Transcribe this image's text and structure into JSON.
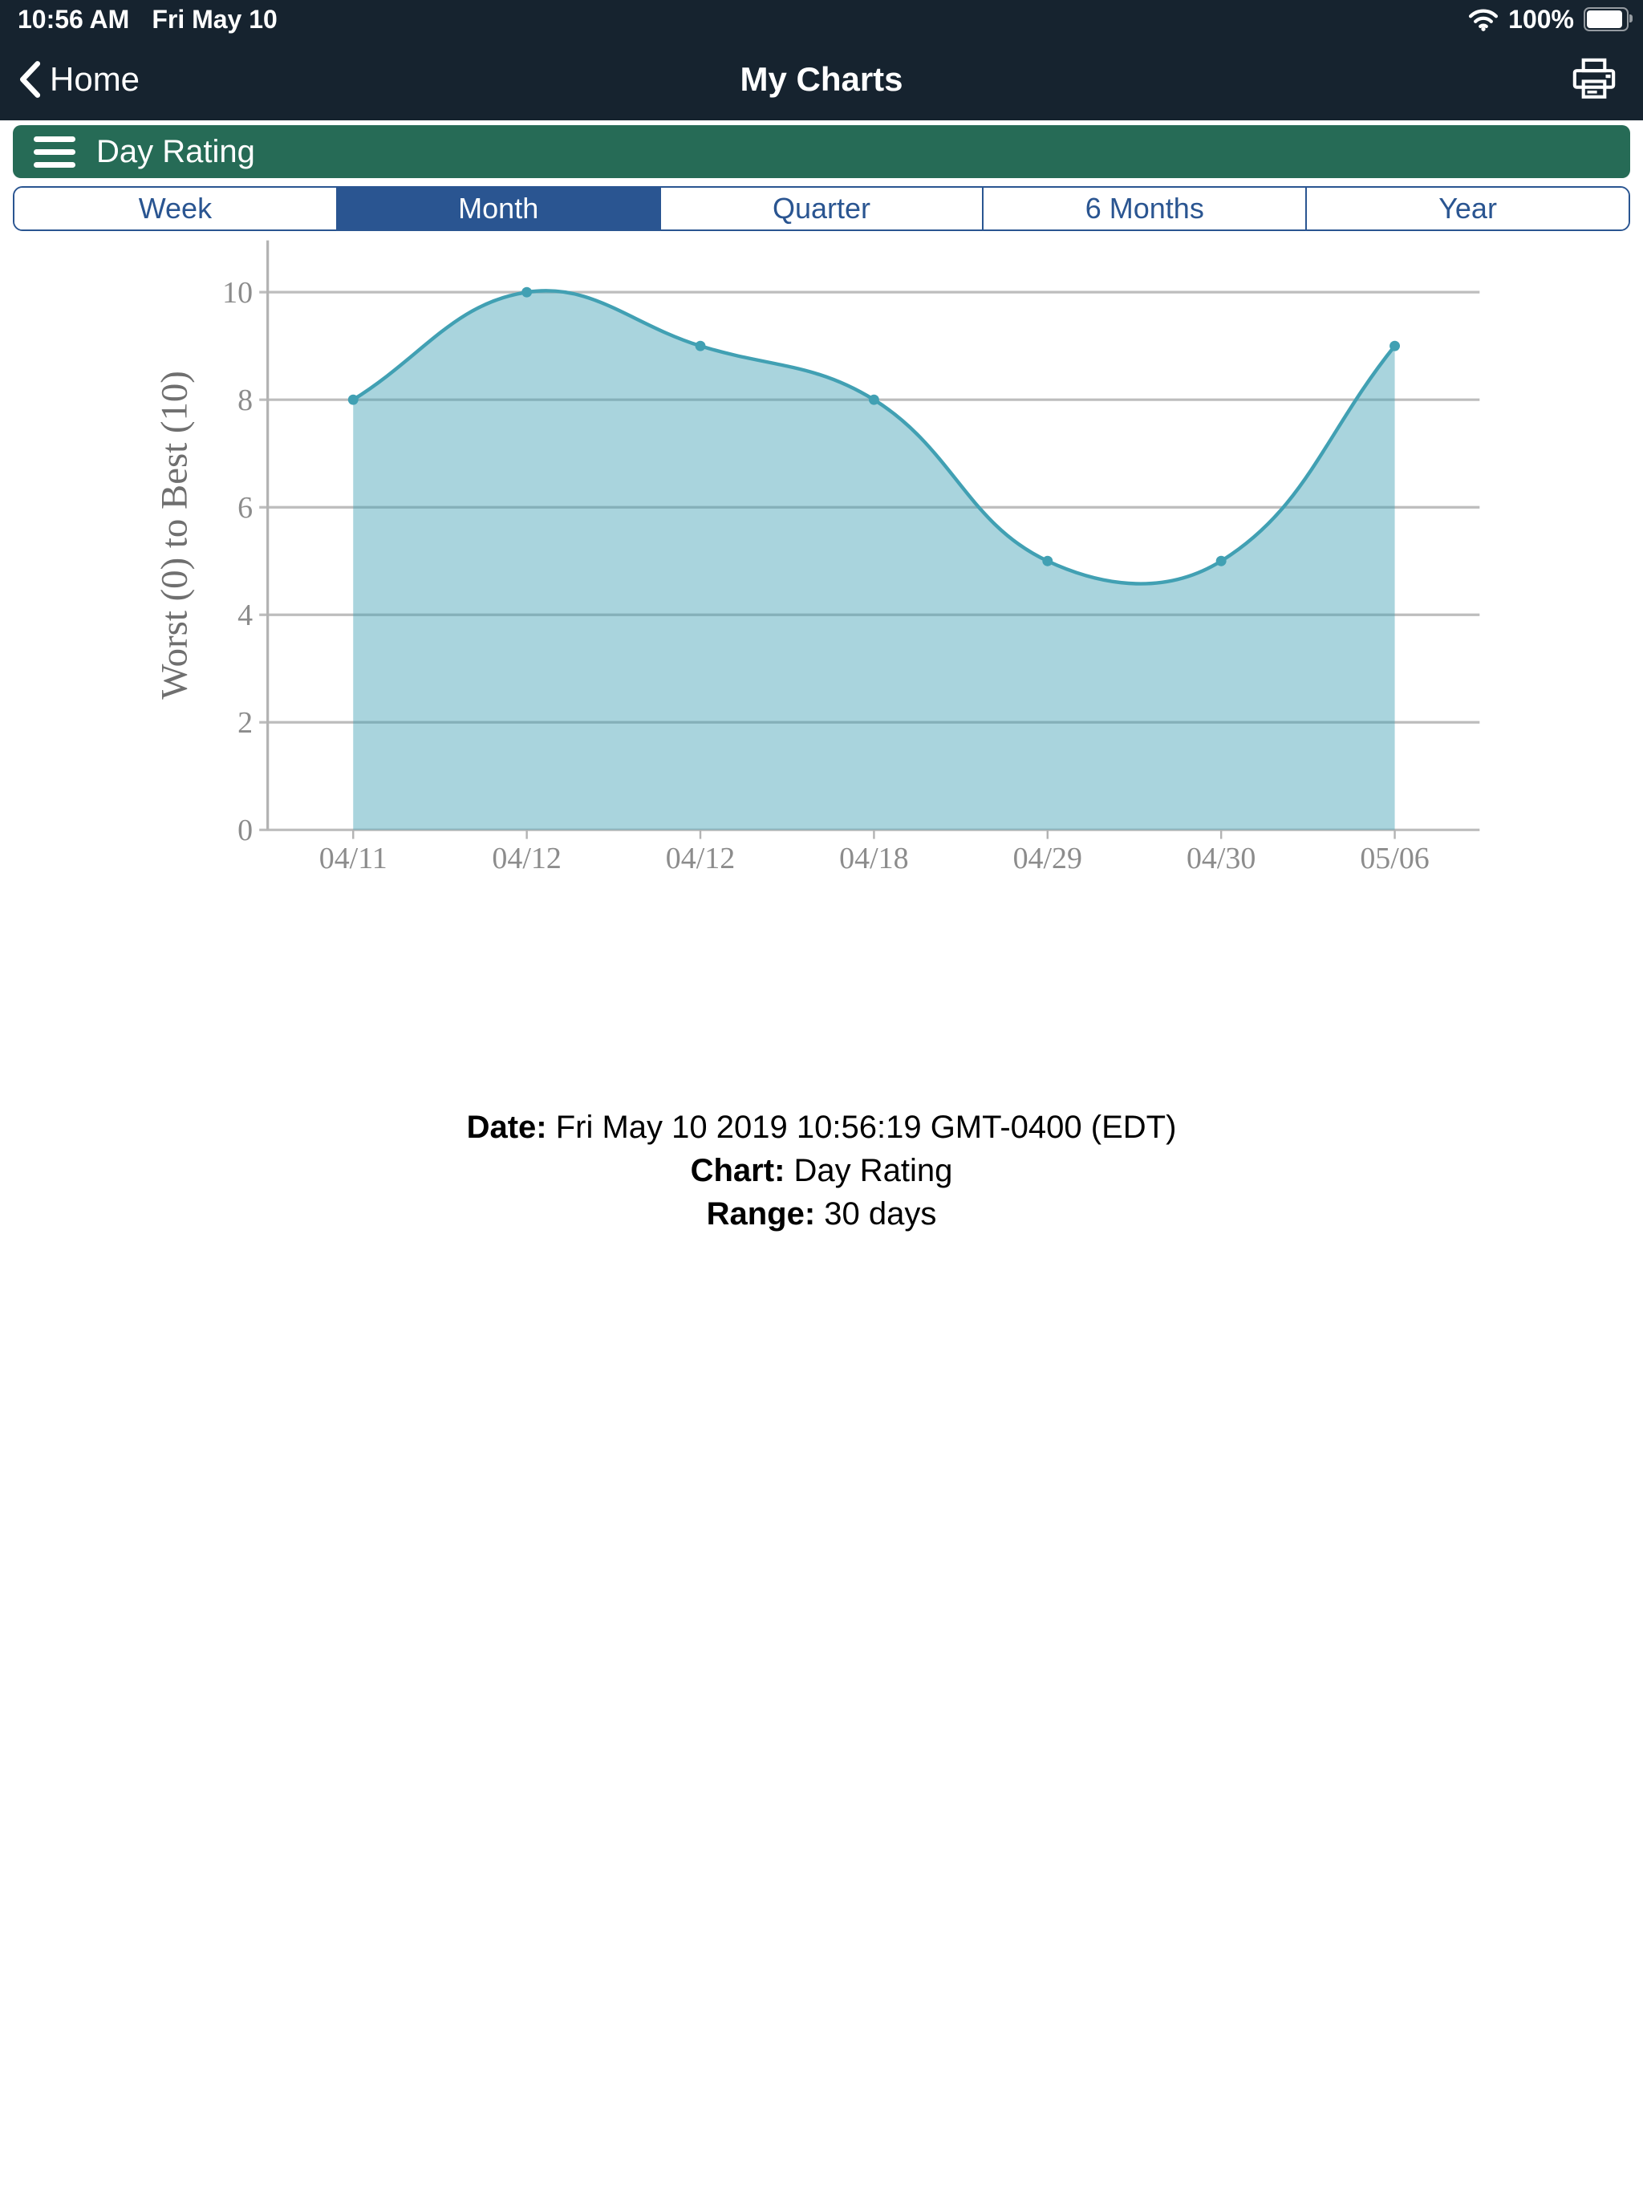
{
  "status_bar": {
    "time": "10:56 AM",
    "date": "Fri May 10",
    "battery": "100%"
  },
  "nav_bar": {
    "back_label": "Home",
    "title": "My Charts"
  },
  "menu_bar": {
    "label": "Day Rating"
  },
  "range_tabs": {
    "options": [
      "Week",
      "Month",
      "Quarter",
      "6 Months",
      "Year"
    ],
    "selected": "Month"
  },
  "chart_data": {
    "type": "area",
    "x": [
      "04/11",
      "04/12",
      "04/12",
      "04/18",
      "04/29",
      "04/30",
      "05/06"
    ],
    "values": [
      8,
      10,
      9,
      8,
      5,
      5,
      9
    ],
    "title": "",
    "xlabel": "",
    "ylabel": "Worst (0) to Best (10)",
    "yticks": [
      0,
      2,
      4,
      6,
      8,
      10
    ],
    "ylim": [
      0,
      10
    ],
    "grid": true,
    "smooth": true,
    "legend": "none",
    "line_color": "#41A0B3",
    "fill_color": "rgba(65,160,179,0.45)",
    "grid_color": "#BDBDBD",
    "axis_color": "#B3B3B3"
  },
  "footer": {
    "rows": [
      {
        "label": "Date:",
        "value": "Fri May 10 2019 10:56:19 GMT-0400 (EDT)"
      },
      {
        "label": "Chart:",
        "value": "Day Rating"
      },
      {
        "label": "Range:",
        "value": "30 days"
      }
    ]
  },
  "colors": {
    "navy": "#16232F",
    "green": "#266B56",
    "blue": "#2A5591"
  }
}
